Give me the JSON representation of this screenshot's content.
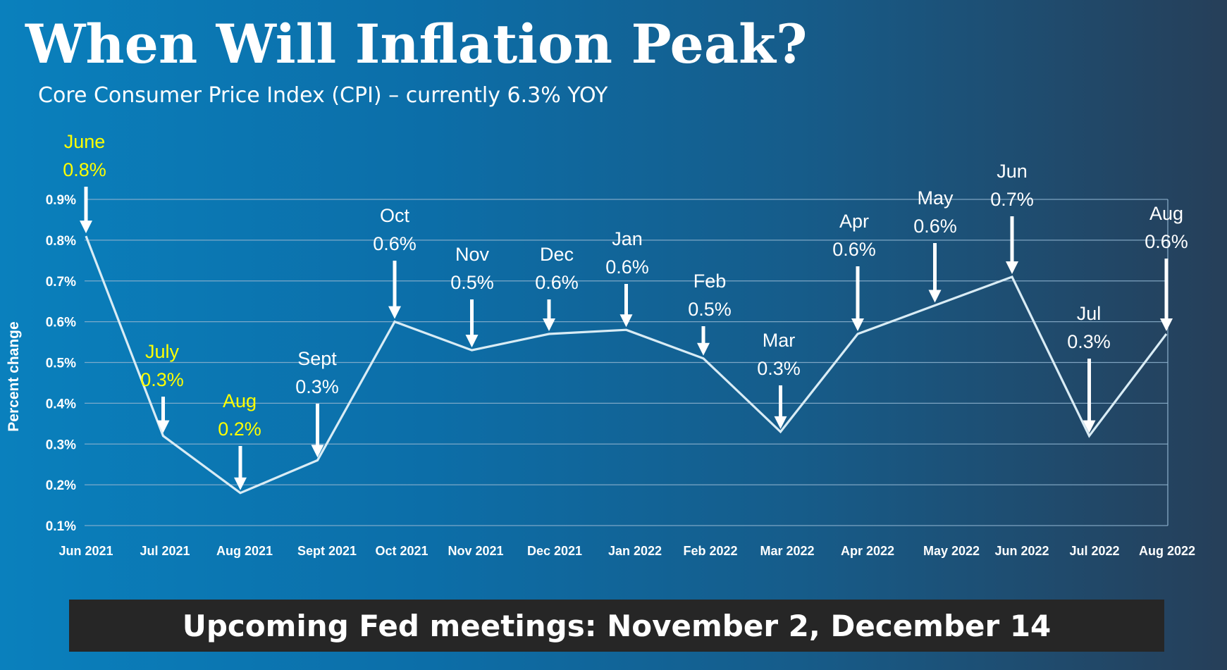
{
  "header": {
    "title": "When Will Inflation Peak?",
    "subtitle": "Core Consumer Price Index (CPI) – currently 6.3% YOY"
  },
  "footer": {
    "banner_text": "Upcoming Fed meetings: November 2, December 14"
  },
  "colors": {
    "line": "#d9ecf5",
    "grid": "#8fb3cf",
    "highlight_label": "#ffff00",
    "label": "#ffffff",
    "banner_bg": "#262626"
  },
  "chart_data": {
    "type": "line",
    "ylabel": "Percent change",
    "xlabel": "",
    "ylim": [
      0.1,
      0.9
    ],
    "yticks": [
      "0.1%",
      "0.2%",
      "0.3%",
      "0.4%",
      "0.5%",
      "0.6%",
      "0.7%",
      "0.8%",
      "0.9%"
    ],
    "categories": [
      "Jun 2021",
      "Jul 2021",
      "Aug 2021",
      "Sept 2021",
      "Oct 2021",
      "Nov 2021",
      "Dec 2021",
      "Jan 2022",
      "Feb 2022",
      "Mar 2022",
      "Apr 2022",
      "May 2022",
      "Jun 2022",
      "Jul 2022",
      "Aug 2022"
    ],
    "values": [
      0.81,
      0.32,
      0.18,
      0.26,
      0.6,
      0.53,
      0.57,
      0.58,
      0.51,
      0.33,
      0.57,
      0.64,
      0.71,
      0.32,
      0.57
    ],
    "grid": true,
    "annotations": [
      {
        "month": "June",
        "value": "0.8%",
        "highlight": true
      },
      {
        "month": "July",
        "value": "0.3%",
        "highlight": true
      },
      {
        "month": "Aug",
        "value": "0.2%",
        "highlight": true
      },
      {
        "month": "Sept",
        "value": "0.3%",
        "highlight": false
      },
      {
        "month": "Oct",
        "value": "0.6%",
        "highlight": false
      },
      {
        "month": "Nov",
        "value": "0.5%",
        "highlight": false
      },
      {
        "month": "Dec",
        "value": "0.6%",
        "highlight": false
      },
      {
        "month": "Jan",
        "value": "0.6%",
        "highlight": false
      },
      {
        "month": "Feb",
        "value": "0.5%",
        "highlight": false
      },
      {
        "month": "Mar",
        "value": "0.3%",
        "highlight": false
      },
      {
        "month": "Apr",
        "value": "0.6%",
        "highlight": false
      },
      {
        "month": "May",
        "value": "0.6%",
        "highlight": false
      },
      {
        "month": "Jun",
        "value": "0.7%",
        "highlight": false
      },
      {
        "month": "Jul",
        "value": "0.3%",
        "highlight": false
      },
      {
        "month": "Aug",
        "value": "0.6%",
        "highlight": false
      }
    ]
  }
}
